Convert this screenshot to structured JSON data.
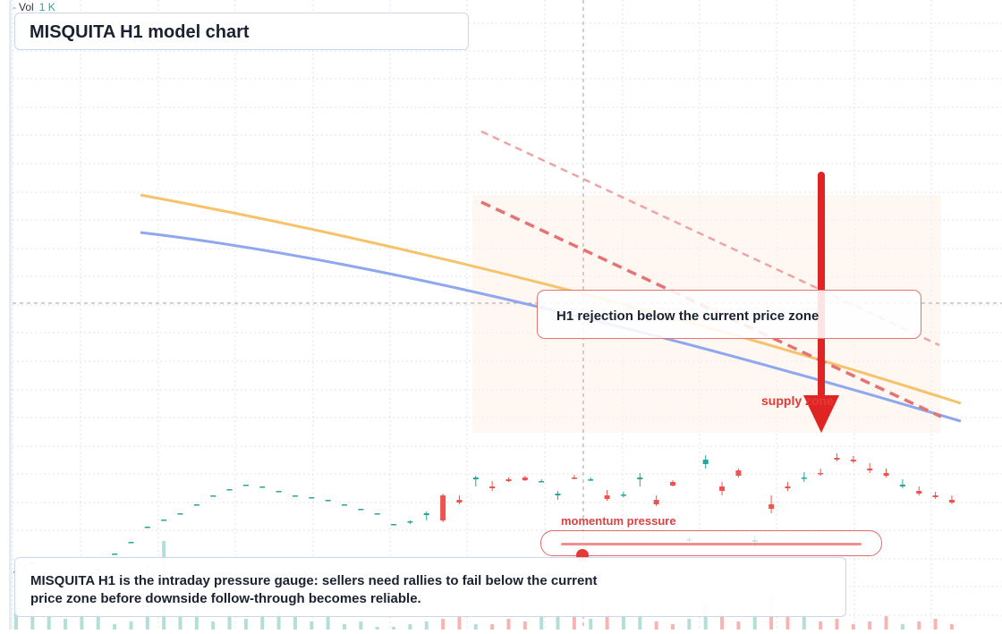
{
  "volume": {
    "label": "Vol",
    "value": "1 K"
  },
  "title": "MISQUITA H1 model chart",
  "callout": "H1 rejection below the current price zone",
  "zone_label": "supply zone",
  "momentum": {
    "label": "momentum pressure",
    "level": 0.07
  },
  "description": "MISQUITA H1 is the intraday pressure gauge: sellers need rallies to fail below the current price zone before downside follow-through becomes reliable.",
  "colors": {
    "bull": "#26a69a",
    "bear": "#ef5350",
    "vol_bull": "#a8d8d3",
    "vol_bear": "#f4a7a6",
    "ma_fast": "#f6c36b",
    "ma_slow": "#8fa7ee",
    "trend": "#e57373",
    "arrow": "#e02424",
    "zone": "#fdf1ea",
    "grid": "#dfe3e8",
    "crosshair": "#a0a0a0"
  },
  "chart_data": {
    "type": "candlestick",
    "y_range": [
      0,
      704
    ],
    "bar_count": 58,
    "candles": [
      [
        65,
        65,
        65,
        65
      ],
      [
        75,
        75,
        75,
        75
      ],
      [
        52,
        52,
        52,
        52
      ],
      [
        45,
        45,
        45,
        45
      ],
      [
        62,
        62,
        62,
        62
      ],
      [
        68,
        68,
        68,
        68
      ],
      [
        85,
        85,
        85,
        85
      ],
      [
        98,
        98,
        98,
        98
      ],
      [
        115,
        115,
        115,
        115
      ],
      [
        123,
        123,
        123,
        123
      ],
      [
        130,
        130,
        130,
        130
      ],
      [
        140,
        140,
        140,
        140
      ],
      [
        150,
        150,
        150,
        150
      ],
      [
        157,
        157,
        157,
        157
      ],
      [
        162,
        162,
        162,
        162
      ],
      [
        160,
        160,
        160,
        160
      ],
      [
        155,
        155,
        155,
        155
      ],
      [
        150,
        150,
        150,
        150
      ],
      [
        148,
        148,
        148,
        148
      ],
      [
        145,
        145,
        145,
        145
      ],
      [
        140,
        140,
        140,
        140
      ],
      [
        135,
        135,
        135,
        135
      ],
      [
        130,
        130,
        130,
        130
      ],
      [
        118,
        118,
        118,
        118
      ],
      [
        120,
        122,
        118,
        121
      ],
      [
        128,
        132,
        122,
        130
      ],
      [
        150,
        152,
        120,
        122
      ],
      [
        145,
        150,
        140,
        142
      ],
      [
        168,
        172,
        160,
        170
      ],
      [
        160,
        166,
        155,
        158
      ],
      [
        168,
        170,
        165,
        166
      ],
      [
        170,
        172,
        166,
        167
      ],
      [
        166,
        168,
        165,
        166
      ],
      [
        150,
        155,
        145,
        152
      ],
      [
        170,
        173,
        168,
        169
      ],
      [
        168,
        170,
        166,
        168
      ],
      [
        150,
        156,
        144,
        146
      ],
      [
        150,
        154,
        148,
        151
      ],
      [
        168,
        175,
        160,
        170
      ],
      [
        145,
        150,
        138,
        140
      ],
      [
        165,
        167,
        160,
        161
      ],
      [
        100,
        103,
        98,
        101
      ],
      [
        185,
        195,
        180,
        190
      ],
      [
        160,
        165,
        150,
        155
      ],
      [
        178,
        180,
        170,
        172
      ],
      [
        98,
        105,
        92,
        100
      ],
      [
        140,
        150,
        130,
        135
      ],
      [
        160,
        165,
        155,
        158
      ],
      [
        170,
        176,
        165,
        170
      ],
      [
        175,
        180,
        172,
        174
      ],
      [
        192,
        197,
        188,
        190
      ],
      [
        190,
        194,
        186,
        188
      ],
      [
        180,
        186,
        175,
        178
      ],
      [
        175,
        180,
        170,
        172
      ],
      [
        160,
        168,
        158,
        162
      ],
      [
        155,
        160,
        150,
        152
      ],
      [
        150,
        154,
        146,
        148
      ],
      [
        145,
        150,
        140,
        142
      ]
    ],
    "volumes": [
      0.14,
      0.12,
      0.05,
      0.04,
      0.08,
      0.06,
      0.02,
      0.03,
      0.24,
      0.33,
      0.19,
      0.12,
      0.03,
      0.06,
      0.04,
      0.05,
      0.07,
      0.05,
      0.03,
      0.05,
      0.02,
      0.03,
      0.01,
      0.01,
      0.02,
      0.03,
      0.04,
      0.05,
      0.02,
      0.02,
      0.04,
      0.03,
      0.06,
      0.05,
      0.07,
      0.04,
      0.08,
      0.05,
      0.06,
      0.03,
      0.02,
      0.04,
      0.09,
      0.07,
      0.03,
      0.05,
      0.12,
      0.06,
      0.05,
      0.03,
      0.04,
      0.02,
      0.03,
      0.05,
      0.02,
      0.03,
      0.04,
      0.02
    ]
  }
}
